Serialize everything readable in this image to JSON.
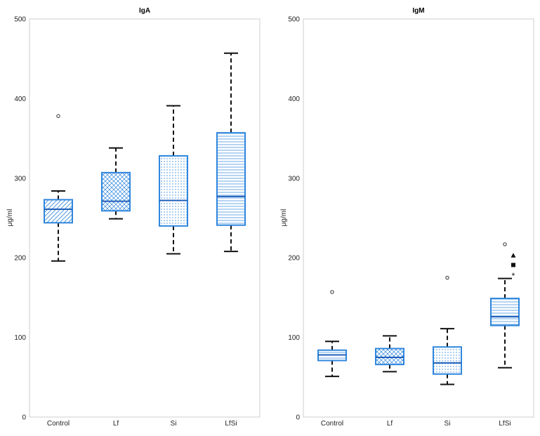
{
  "colors": {
    "box": "#2f86dd",
    "median": "#1f5fb8",
    "whisker": "#111111",
    "frame": "#cfcfcf"
  },
  "chart_data": [
    {
      "type": "box",
      "title": "IgA",
      "ylabel": "μg/ml",
      "ylim": [
        0,
        500
      ],
      "yticks": [
        0,
        100,
        200,
        300,
        400,
        500
      ],
      "categories": [
        "Control",
        "Lf",
        "Si",
        "LfSi"
      ],
      "grid": false,
      "boxes": [
        {
          "category": "Control",
          "whislo": 196,
          "q1": 244,
          "median": 261,
          "q3": 273,
          "whishi": 284,
          "pattern": "diagonal",
          "outliers": [
            {
              "value": 378,
              "marker": "circle"
            }
          ]
        },
        {
          "category": "Lf",
          "whislo": 249,
          "q1": 259,
          "median": 271,
          "q3": 307,
          "whishi": 338,
          "pattern": "crosshatch",
          "outliers": []
        },
        {
          "category": "Si",
          "whislo": 205,
          "q1": 240,
          "median": 272,
          "q3": 328,
          "whishi": 391,
          "pattern": "dots",
          "outliers": []
        },
        {
          "category": "LfSi",
          "whislo": 208,
          "q1": 241,
          "median": 277,
          "q3": 357,
          "whishi": 457,
          "pattern": "horizontal",
          "outliers": []
        }
      ]
    },
    {
      "type": "box",
      "title": "IgM",
      "ylabel": "μg/ml",
      "ylim": [
        0,
        500
      ],
      "yticks": [
        0,
        100,
        200,
        300,
        400,
        500
      ],
      "categories": [
        "Control",
        "Lf",
        "Si",
        "LfSi"
      ],
      "grid": false,
      "boxes": [
        {
          "category": "Control",
          "whislo": 51,
          "q1": 71,
          "median": 78,
          "q3": 84,
          "whishi": 95,
          "pattern": "horizontal",
          "outliers": [
            {
              "value": 157,
              "marker": "circle"
            }
          ]
        },
        {
          "category": "Lf",
          "whislo": 57,
          "q1": 66,
          "median": 75,
          "q3": 86,
          "whishi": 102,
          "pattern": "crosshatch",
          "outliers": []
        },
        {
          "category": "Si",
          "whislo": 41,
          "q1": 54,
          "median": 68,
          "q3": 88,
          "whishi": 111,
          "pattern": "dots",
          "outliers": [
            {
              "value": 175,
              "marker": "circle"
            }
          ]
        },
        {
          "category": "LfSi",
          "whislo": 62,
          "q1": 115,
          "median": 126,
          "q3": 149,
          "whishi": 174,
          "pattern": "horizontal",
          "outliers": [
            {
              "value": 217,
              "marker": "circle"
            },
            {
              "value": 203,
              "marker": "triangle"
            },
            {
              "value": 191,
              "marker": "square"
            },
            {
              "value": 178,
              "marker": "star"
            }
          ]
        }
      ]
    }
  ]
}
